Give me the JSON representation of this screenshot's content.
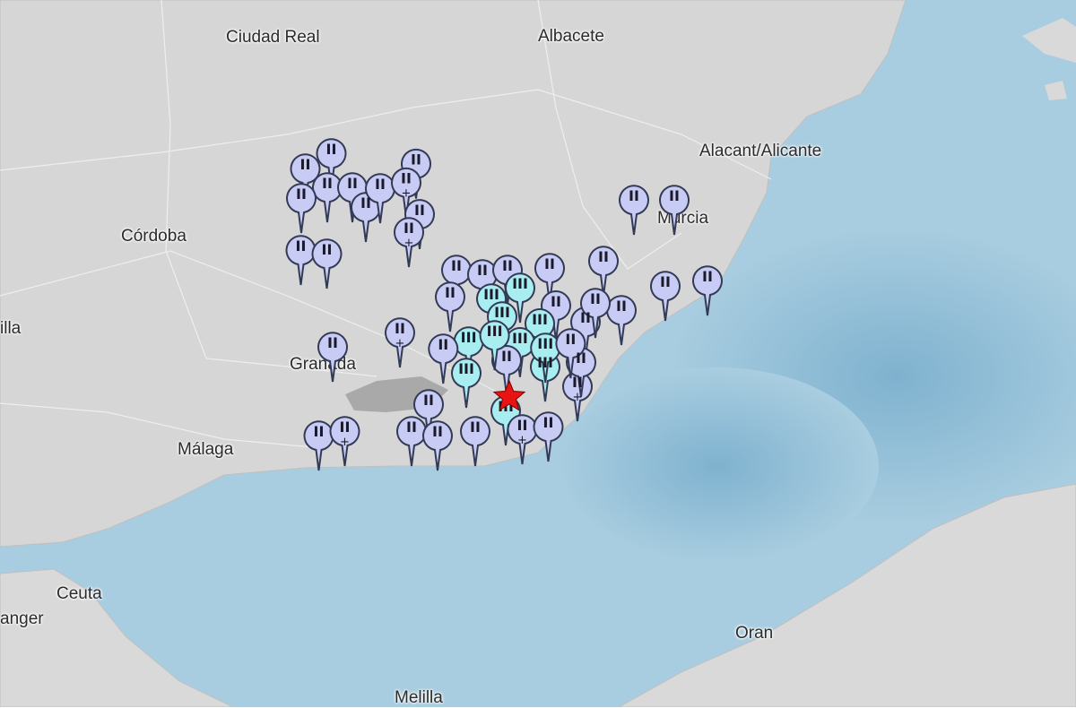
{
  "map": {
    "colors": {
      "land": "#d6d6d6",
      "sea": "#a9cde0",
      "deep_sea": "#8fbdd6",
      "marker_II": "#c8ccf5",
      "marker_III": "#a8eef0",
      "epicenter": "#e81414"
    },
    "places": [
      {
        "name": "Ciudad Real"
      },
      {
        "name": "Albacete"
      },
      {
        "name": "Alacant/Alicante"
      },
      {
        "name": "Córdoba"
      },
      {
        "name": "Murcia"
      },
      {
        "name": "illa"
      },
      {
        "name": "Granada"
      },
      {
        "name": "Málaga"
      },
      {
        "name": "Ceuta"
      },
      {
        "name": "anger"
      },
      {
        "name": "Oran"
      },
      {
        "name": "Melilla"
      }
    ],
    "epicenter_icon": "red-star-icon",
    "markers": [
      {
        "intensity": "II"
      },
      {
        "intensity": "II"
      },
      {
        "intensity": "II"
      },
      {
        "intensity": "II"
      },
      {
        "intensity": "II"
      },
      {
        "intensity": "II"
      },
      {
        "intensity": "II"
      },
      {
        "intensity": "II"
      },
      {
        "intensity": "II",
        "plus": true
      },
      {
        "intensity": "II"
      },
      {
        "intensity": "II",
        "plus": true
      },
      {
        "intensity": "II"
      },
      {
        "intensity": "II"
      },
      {
        "intensity": "II"
      },
      {
        "intensity": "II"
      },
      {
        "intensity": "II"
      },
      {
        "intensity": "II"
      },
      {
        "intensity": "II"
      },
      {
        "intensity": "II"
      },
      {
        "intensity": "II",
        "plus": true
      },
      {
        "intensity": "II"
      },
      {
        "intensity": "II"
      },
      {
        "intensity": "II"
      },
      {
        "intensity": "II"
      },
      {
        "intensity": "II"
      },
      {
        "intensity": "III"
      },
      {
        "intensity": "III"
      },
      {
        "intensity": "III"
      },
      {
        "intensity": "II"
      },
      {
        "intensity": "III"
      },
      {
        "intensity": "III"
      },
      {
        "intensity": "III"
      },
      {
        "intensity": "II"
      },
      {
        "intensity": "III"
      },
      {
        "intensity": "III"
      },
      {
        "intensity": "II"
      },
      {
        "intensity": "III"
      },
      {
        "intensity": "III"
      },
      {
        "intensity": "II"
      },
      {
        "intensity": "II"
      },
      {
        "intensity": "II",
        "plus": true
      },
      {
        "intensity": "II"
      },
      {
        "intensity": "II"
      },
      {
        "intensity": "II"
      },
      {
        "intensity": "II"
      },
      {
        "intensity": "II"
      },
      {
        "intensity": "II"
      },
      {
        "intensity": "III"
      },
      {
        "intensity": "II",
        "plus": true
      },
      {
        "intensity": "II"
      },
      {
        "intensity": "II"
      },
      {
        "intensity": "II",
        "plus": true
      },
      {
        "intensity": "II"
      }
    ]
  }
}
